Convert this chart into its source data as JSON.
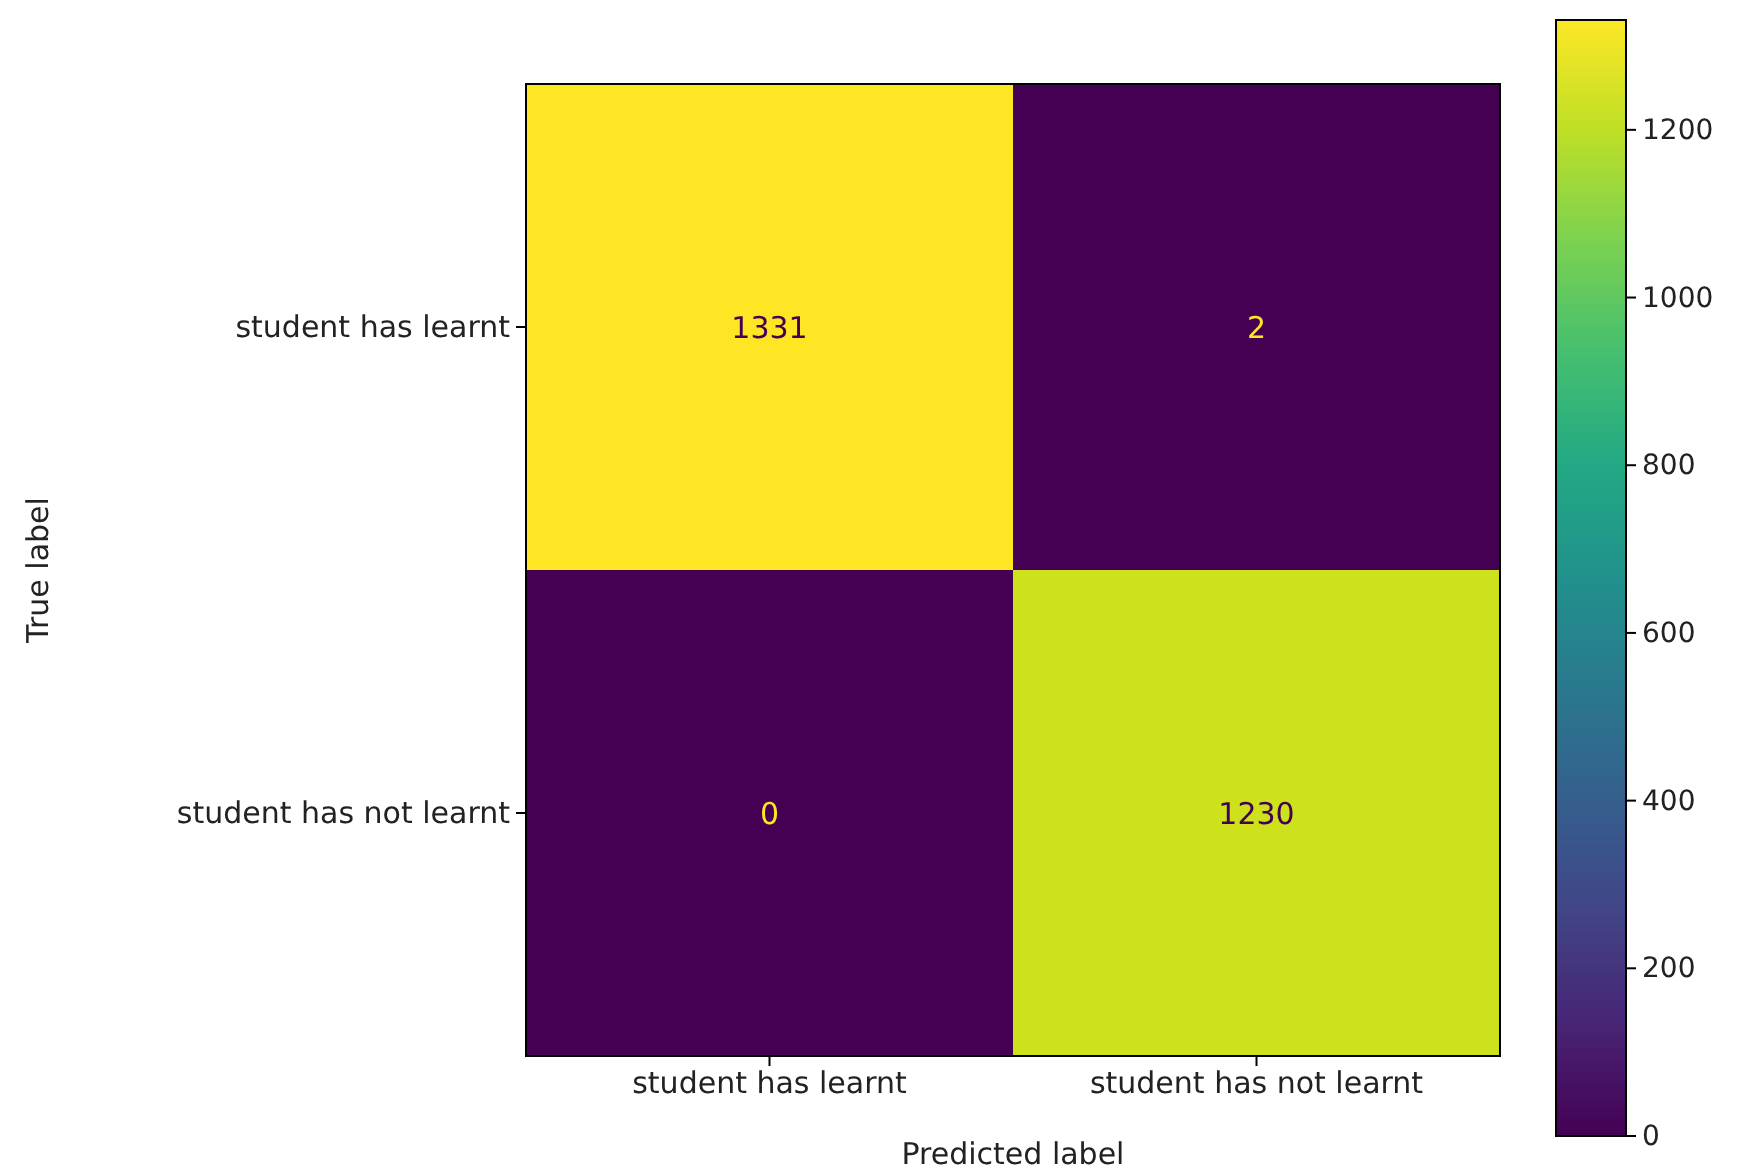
{
  "chart_data": {
    "type": "heatmap",
    "xlabel": "Predicted label",
    "ylabel": "True label",
    "categories": [
      "student has learnt",
      "student has not learnt"
    ],
    "y_categories": [
      "student has learnt",
      "student has not learnt"
    ],
    "cells": [
      [
        1331,
        2
      ],
      [
        0,
        1230
      ]
    ],
    "clim": [
      0,
      1331
    ],
    "cticks": [
      0,
      200,
      400,
      600,
      800,
      1000,
      1200
    ],
    "data_labels": true
  }
}
